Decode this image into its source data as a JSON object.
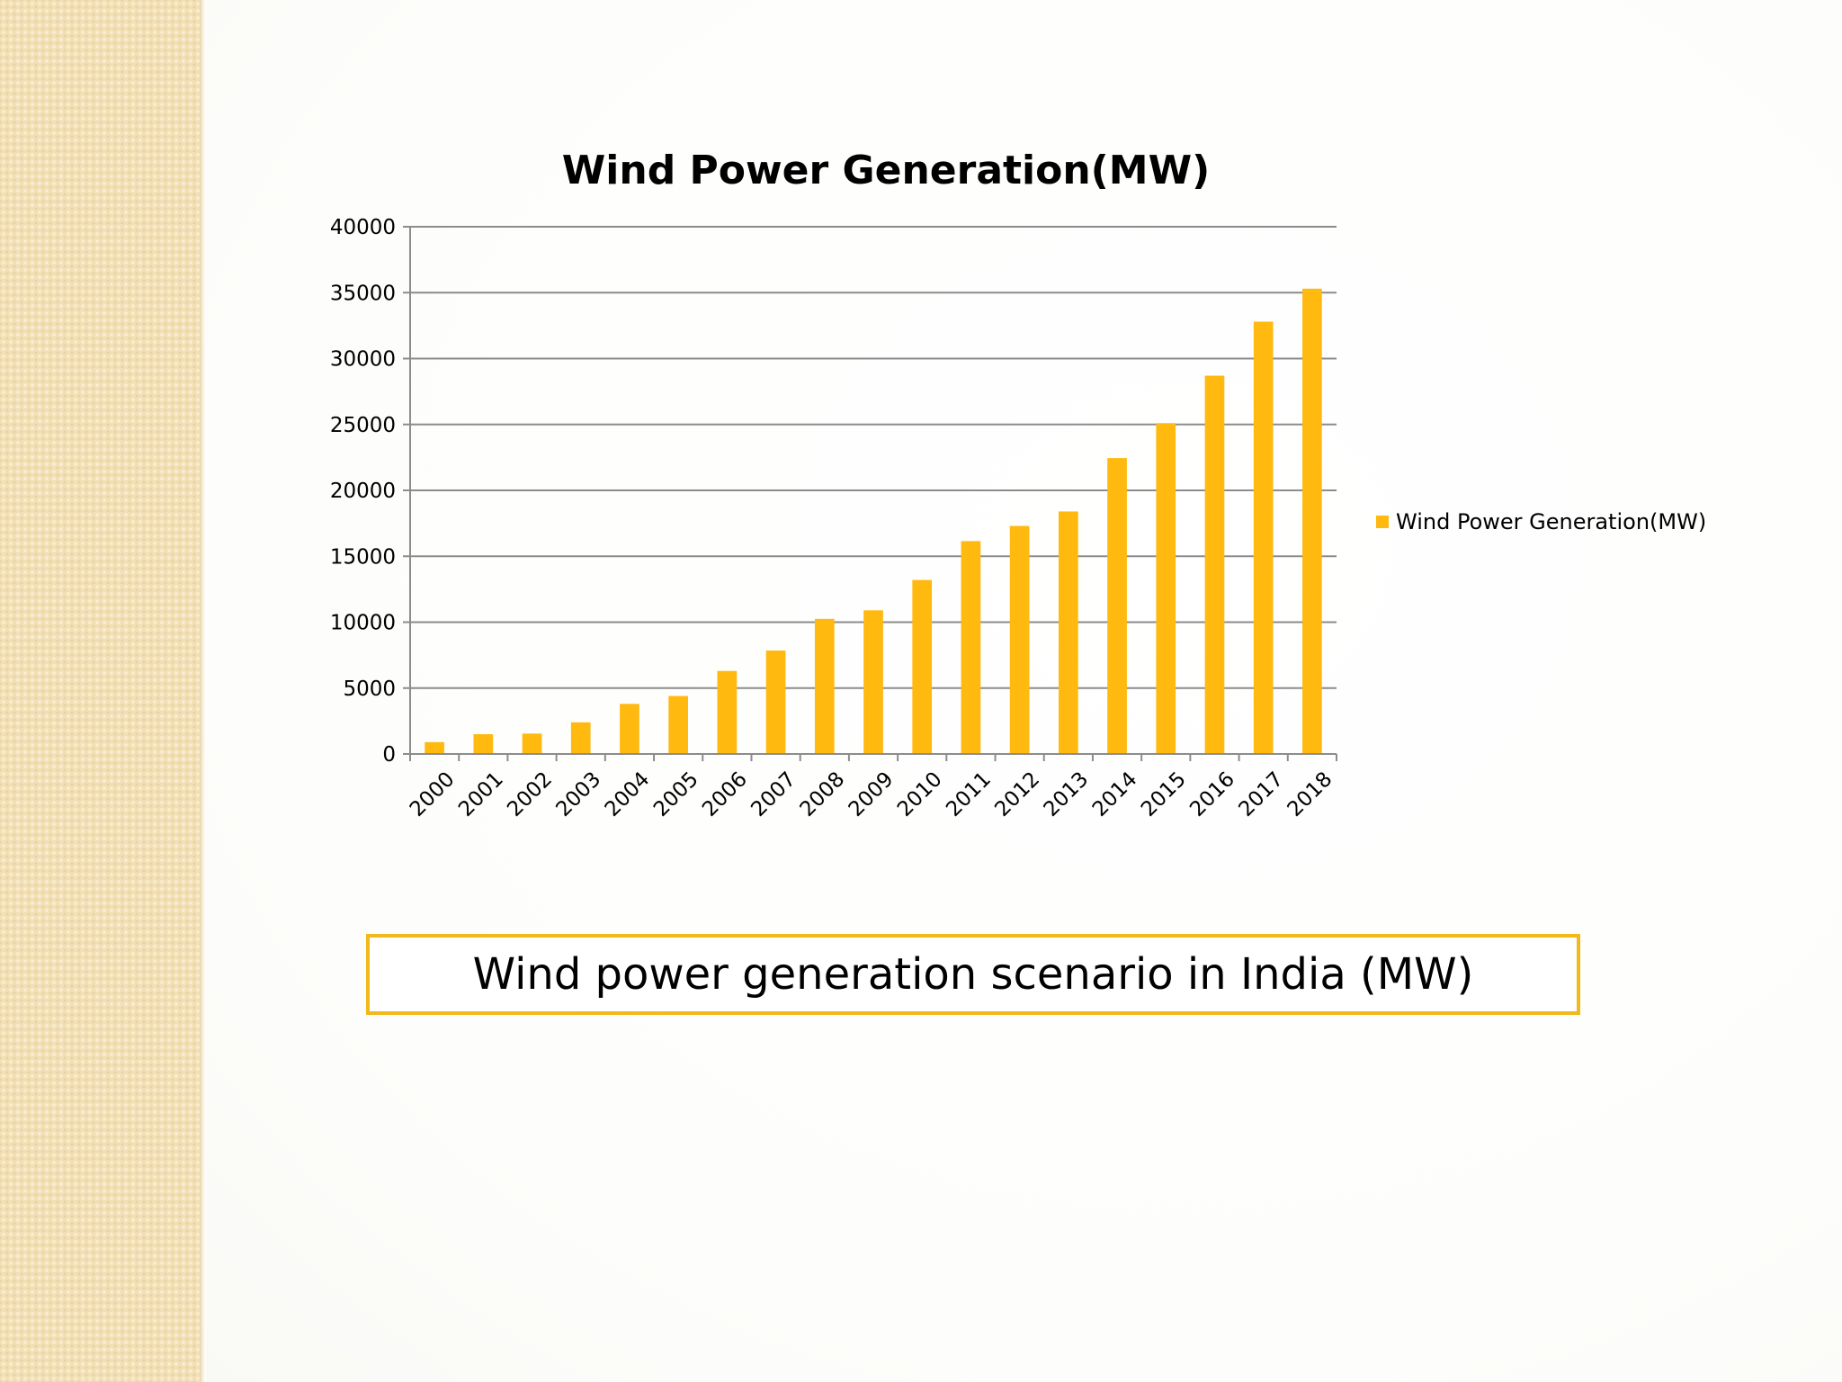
{
  "colors": {
    "bar": "#ffb90f",
    "caption_border": "#f2b81c",
    "grid": "#8c8c8c",
    "strip": "#f3dfb4"
  },
  "caption": {
    "text": "Wind power generation scenario in India (MW)"
  },
  "chart_data": {
    "type": "bar",
    "title": "Wind  Power Generation(MW)",
    "xlabel": "",
    "ylabel": "",
    "ylim": [
      0,
      40000
    ],
    "yticks": [
      "0",
      "5000",
      "10000",
      "15000",
      "20000",
      "25000",
      "30000",
      "35000",
      "40000"
    ],
    "grid": true,
    "legend_position": "right",
    "categories": [
      "2000",
      "2001",
      "2002",
      "2003",
      "2004",
      "2005",
      "2006",
      "2007",
      "2008",
      "2009",
      "2010",
      "2011",
      "2012",
      "2013",
      "2014",
      "2015",
      "2016",
      "2017",
      "2018"
    ],
    "series": [
      {
        "name": "Wind  Power Generation(MW)",
        "values": [
          900,
          1500,
          1550,
          2400,
          3800,
          4400,
          6300,
          7850,
          10250,
          10900,
          13200,
          16150,
          17300,
          18400,
          22450,
          25100,
          28700,
          32800,
          35300
        ]
      }
    ]
  }
}
